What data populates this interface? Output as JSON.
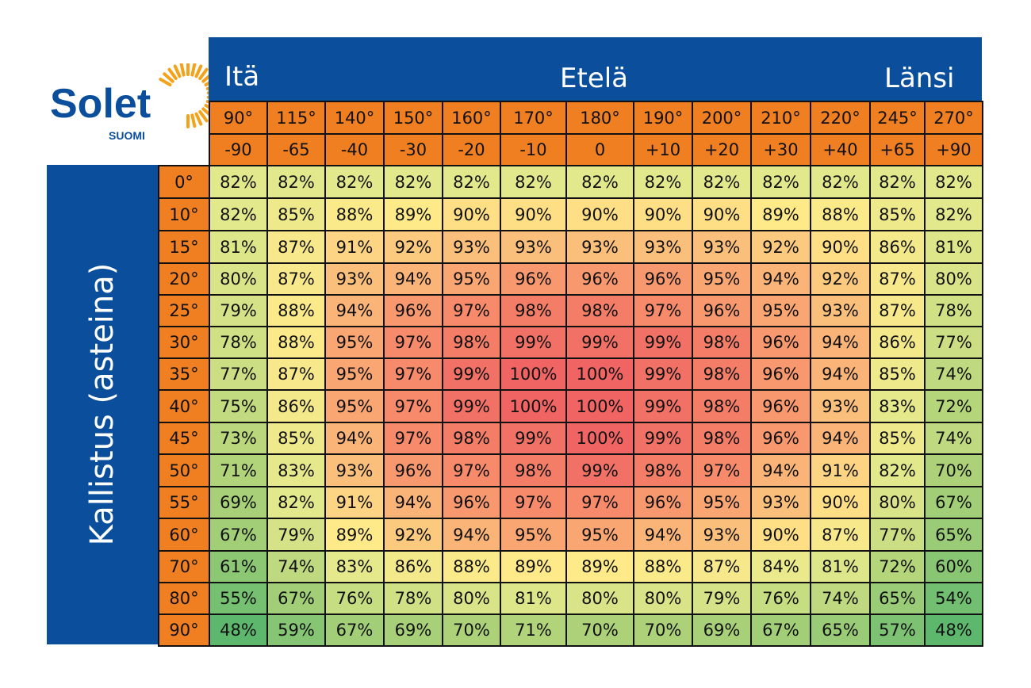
{
  "logo": {
    "brand": "Solet",
    "sub": "SUOMI"
  },
  "header": {
    "east": "Itä",
    "south": "Etelä",
    "west": "Länsi"
  },
  "y_axis_label": "Kallistus (asteina)",
  "colors": {
    "blue": "#0b4f9c",
    "orange": "#f07f22"
  },
  "chart_data": {
    "type": "heatmap",
    "x_azimuth": [
      "90°",
      "115°",
      "140°",
      "150°",
      "160°",
      "170°",
      "180°",
      "190°",
      "200°",
      "210°",
      "220°",
      "245°",
      "270°"
    ],
    "x_offset": [
      "-90",
      "-65",
      "-40",
      "-30",
      "-20",
      "-10",
      "0",
      "+10",
      "+20",
      "+30",
      "+40",
      "+65",
      "+90"
    ],
    "y_tilt": [
      "0°",
      "10°",
      "15°",
      "20°",
      "25°",
      "30°",
      "35°",
      "40°",
      "45°",
      "50°",
      "55°",
      "60°",
      "70°",
      "80°",
      "90°"
    ],
    "values": [
      [
        82,
        82,
        82,
        82,
        82,
        82,
        82,
        82,
        82,
        82,
        82,
        82,
        82
      ],
      [
        82,
        85,
        88,
        89,
        90,
        90,
        90,
        90,
        90,
        89,
        88,
        85,
        82
      ],
      [
        81,
        87,
        91,
        92,
        93,
        93,
        93,
        93,
        93,
        92,
        90,
        86,
        81
      ],
      [
        80,
        87,
        93,
        94,
        95,
        96,
        96,
        96,
        95,
        94,
        92,
        87,
        80
      ],
      [
        79,
        88,
        94,
        96,
        97,
        98,
        98,
        97,
        96,
        95,
        93,
        87,
        78
      ],
      [
        78,
        88,
        95,
        97,
        98,
        99,
        99,
        99,
        98,
        96,
        94,
        86,
        77
      ],
      [
        77,
        87,
        95,
        97,
        99,
        100,
        100,
        99,
        98,
        96,
        94,
        85,
        74
      ],
      [
        75,
        86,
        95,
        97,
        99,
        100,
        100,
        99,
        98,
        96,
        93,
        83,
        72
      ],
      [
        73,
        85,
        94,
        97,
        98,
        99,
        100,
        99,
        98,
        96,
        94,
        85,
        74
      ],
      [
        71,
        83,
        93,
        96,
        97,
        98,
        99,
        98,
        97,
        94,
        91,
        82,
        70
      ],
      [
        69,
        82,
        91,
        94,
        96,
        97,
        97,
        96,
        95,
        93,
        90,
        80,
        67
      ],
      [
        67,
        79,
        89,
        92,
        94,
        95,
        95,
        94,
        93,
        90,
        87,
        77,
        65
      ],
      [
        61,
        74,
        83,
        86,
        88,
        89,
        89,
        88,
        87,
        84,
        81,
        72,
        60
      ],
      [
        55,
        67,
        76,
        78,
        80,
        81,
        80,
        80,
        79,
        76,
        74,
        65,
        54
      ],
      [
        48,
        59,
        67,
        69,
        70,
        71,
        70,
        70,
        69,
        67,
        65,
        57,
        48
      ]
    ],
    "value_suffix": "%"
  }
}
